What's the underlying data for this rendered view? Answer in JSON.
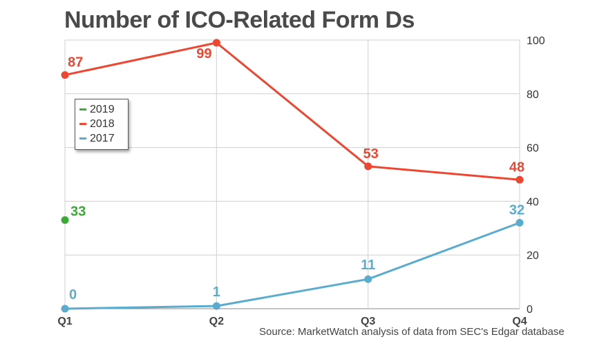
{
  "title": "Number of ICO-Related Form Ds",
  "source": "Source: MarketWatch analysis of data from SEC's Edgar database",
  "colors": {
    "2019": "#3aaa35",
    "2018": "#ee4630",
    "2017": "#5aaccf"
  },
  "chart_data": {
    "type": "line",
    "title": "Number of ICO-Related Form Ds",
    "categories": [
      "Q1",
      "Q2",
      "Q3",
      "Q4"
    ],
    "ylim": [
      0,
      100
    ],
    "yticks": [
      0,
      20,
      40,
      60,
      80,
      100
    ],
    "y_axis_side": "right",
    "grid": true,
    "legend_position": "upper-left",
    "series": [
      {
        "name": "2019",
        "color": "#3aaa35",
        "values": [
          33,
          null,
          null,
          null
        ]
      },
      {
        "name": "2018",
        "color": "#ee4630",
        "values": [
          87,
          99,
          53,
          48
        ]
      },
      {
        "name": "2017",
        "color": "#5aaccf",
        "values": [
          0,
          1,
          11,
          32
        ]
      }
    ]
  }
}
